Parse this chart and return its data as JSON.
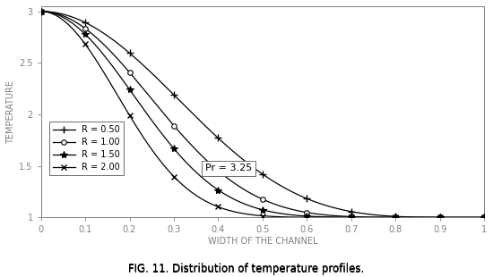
{
  "title_prefix": "FIG. 11. ",
  "title_bold": "Distribution of temperature profiles.",
  "xlabel": "WIDTH OF THE CHANNEL",
  "ylabel": "TEMPERATURE",
  "annotation": "Pr = 3.25",
  "xlim": [
    0,
    1
  ],
  "ylim": [
    1,
    3.05
  ],
  "yticks": [
    1.0,
    1.5,
    2.0,
    2.5,
    3.0
  ],
  "xticks": [
    0,
    0.1,
    0.2,
    0.3,
    0.4,
    0.5,
    0.6,
    0.7,
    0.8,
    0.9,
    1.0
  ],
  "series": [
    {
      "label": "R = 0.50",
      "R": 0.5,
      "marker": "+",
      "exponent": 4.5
    },
    {
      "label": "R = 1.00",
      "R": 1.0,
      "marker": "o",
      "exponent": 7.0
    },
    {
      "label": "R = 1.50",
      "R": 1.5,
      "marker": "*",
      "exponent": 9.5
    },
    {
      "label": "R = 2.00",
      "R": 2.0,
      "marker": "x",
      "exponent": 14.0
    }
  ],
  "background_color": "#ffffff",
  "line_color": "#000000",
  "axis_color": "#808080",
  "label_color": "#808080",
  "tick_color": "#808080"
}
